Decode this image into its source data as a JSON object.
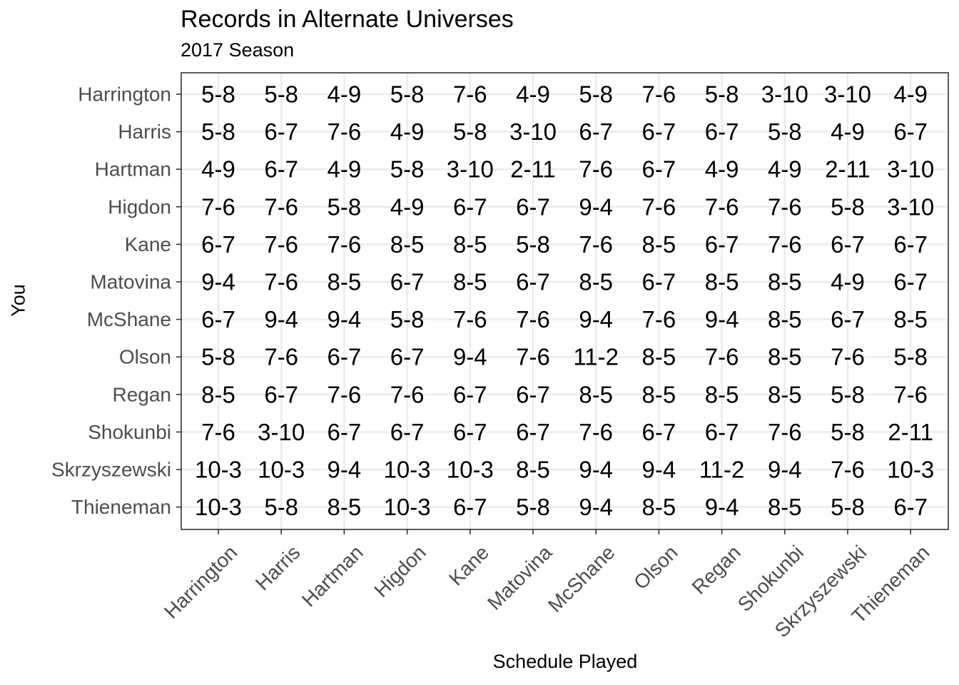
{
  "chart_data": {
    "type": "table",
    "title": "Records in Alternate Universes",
    "subtitle": "2017 Season",
    "xlabel": "Schedule Played",
    "ylabel": "You",
    "grid": true,
    "x_categories": [
      "Harrington",
      "Harris",
      "Hartman",
      "Higdon",
      "Kane",
      "Matovina",
      "McShane",
      "Olson",
      "Regan",
      "Shokunbi",
      "Skrzyszewski",
      "Thieneman"
    ],
    "y_categories": [
      "Harrington",
      "Harris",
      "Hartman",
      "Higdon",
      "Kane",
      "Matovina",
      "McShane",
      "Olson",
      "Regan",
      "Shokunbi",
      "Skrzyszewski",
      "Thieneman"
    ],
    "cells": [
      [
        "5-8",
        "5-8",
        "4-9",
        "5-8",
        "7-6",
        "4-9",
        "5-8",
        "7-6",
        "5-8",
        "3-10",
        "3-10",
        "4-9"
      ],
      [
        "5-8",
        "6-7",
        "7-6",
        "4-9",
        "5-8",
        "3-10",
        "6-7",
        "6-7",
        "6-7",
        "5-8",
        "4-9",
        "6-7"
      ],
      [
        "4-9",
        "6-7",
        "4-9",
        "5-8",
        "3-10",
        "2-11",
        "7-6",
        "6-7",
        "4-9",
        "4-9",
        "2-11",
        "3-10"
      ],
      [
        "7-6",
        "7-6",
        "5-8",
        "4-9",
        "6-7",
        "6-7",
        "9-4",
        "7-6",
        "7-6",
        "7-6",
        "5-8",
        "3-10"
      ],
      [
        "6-7",
        "7-6",
        "7-6",
        "8-5",
        "8-5",
        "5-8",
        "7-6",
        "8-5",
        "6-7",
        "7-6",
        "6-7",
        "6-7"
      ],
      [
        "9-4",
        "7-6",
        "8-5",
        "6-7",
        "8-5",
        "6-7",
        "8-5",
        "6-7",
        "8-5",
        "8-5",
        "4-9",
        "6-7"
      ],
      [
        "6-7",
        "9-4",
        "9-4",
        "5-8",
        "7-6",
        "7-6",
        "9-4",
        "7-6",
        "9-4",
        "8-5",
        "6-7",
        "8-5"
      ],
      [
        "5-8",
        "7-6",
        "6-7",
        "6-7",
        "9-4",
        "7-6",
        "11-2",
        "8-5",
        "7-6",
        "8-5",
        "7-6",
        "5-8"
      ],
      [
        "8-5",
        "6-7",
        "7-6",
        "7-6",
        "6-7",
        "6-7",
        "8-5",
        "8-5",
        "8-5",
        "8-5",
        "5-8",
        "7-6"
      ],
      [
        "7-6",
        "3-10",
        "6-7",
        "6-7",
        "6-7",
        "6-7",
        "7-6",
        "6-7",
        "6-7",
        "7-6",
        "5-8",
        "2-11"
      ],
      [
        "10-3",
        "10-3",
        "9-4",
        "10-3",
        "10-3",
        "8-5",
        "9-4",
        "9-4",
        "11-2",
        "9-4",
        "7-6",
        "10-3"
      ],
      [
        "10-3",
        "5-8",
        "8-5",
        "10-3",
        "6-7",
        "5-8",
        "9-4",
        "8-5",
        "9-4",
        "8-5",
        "5-8",
        "6-7"
      ]
    ]
  }
}
